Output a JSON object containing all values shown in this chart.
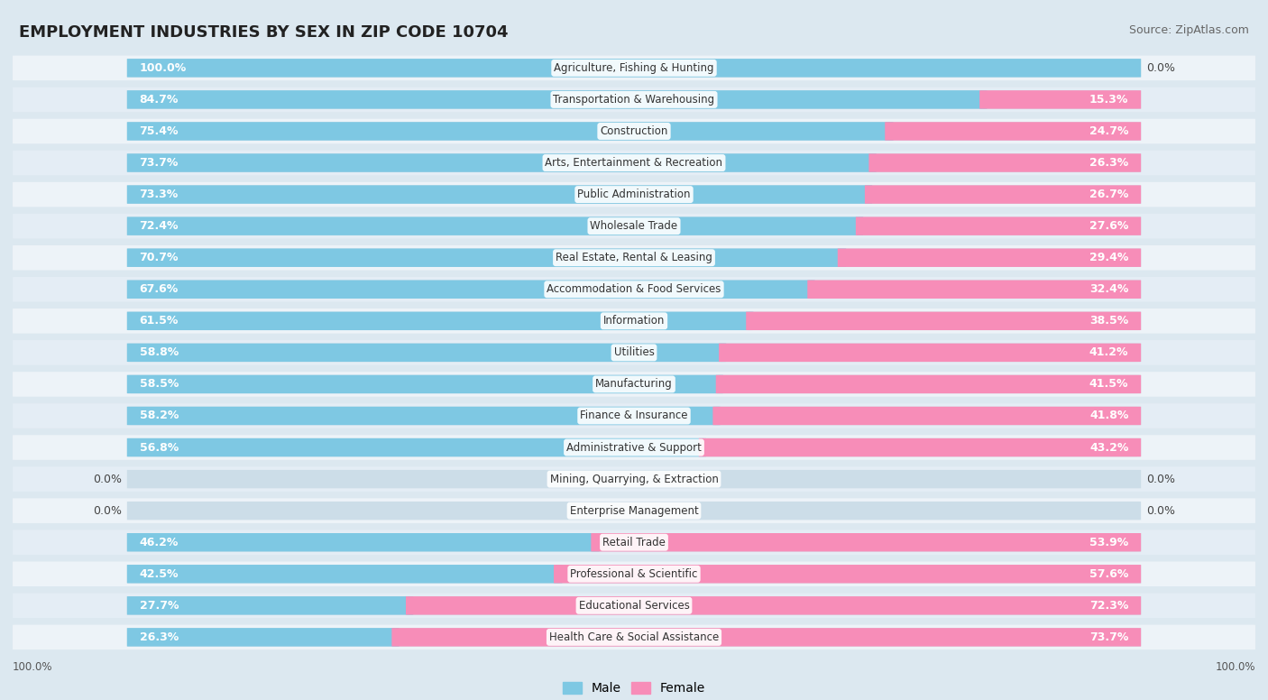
{
  "title": "EMPLOYMENT INDUSTRIES BY SEX IN ZIP CODE 10704",
  "source": "Source: ZipAtlas.com",
  "industries": [
    {
      "name": "Agriculture, Fishing & Hunting",
      "male": 100.0,
      "female": 0.0
    },
    {
      "name": "Transportation & Warehousing",
      "male": 84.7,
      "female": 15.3
    },
    {
      "name": "Construction",
      "male": 75.4,
      "female": 24.7
    },
    {
      "name": "Arts, Entertainment & Recreation",
      "male": 73.7,
      "female": 26.3
    },
    {
      "name": "Public Administration",
      "male": 73.3,
      "female": 26.7
    },
    {
      "name": "Wholesale Trade",
      "male": 72.4,
      "female": 27.6
    },
    {
      "name": "Real Estate, Rental & Leasing",
      "male": 70.7,
      "female": 29.4
    },
    {
      "name": "Accommodation & Food Services",
      "male": 67.6,
      "female": 32.4
    },
    {
      "name": "Information",
      "male": 61.5,
      "female": 38.5
    },
    {
      "name": "Utilities",
      "male": 58.8,
      "female": 41.2
    },
    {
      "name": "Manufacturing",
      "male": 58.5,
      "female": 41.5
    },
    {
      "name": "Finance & Insurance",
      "male": 58.2,
      "female": 41.8
    },
    {
      "name": "Administrative & Support",
      "male": 56.8,
      "female": 43.2
    },
    {
      "name": "Mining, Quarrying, & Extraction",
      "male": 0.0,
      "female": 0.0
    },
    {
      "name": "Enterprise Management",
      "male": 0.0,
      "female": 0.0
    },
    {
      "name": "Retail Trade",
      "male": 46.2,
      "female": 53.9
    },
    {
      "name": "Professional & Scientific",
      "male": 42.5,
      "female": 57.6
    },
    {
      "name": "Educational Services",
      "male": 27.7,
      "female": 72.3
    },
    {
      "name": "Health Care & Social Assistance",
      "male": 26.3,
      "female": 73.7
    }
  ],
  "male_color": "#7ec8e3",
  "female_color": "#f78db8",
  "bar_bg_color": "#dce8f0",
  "row_bg_even": "#edf3f8",
  "row_bg_odd": "#e4edf5",
  "bg_color": "#dce8f0",
  "title_fontsize": 13,
  "source_fontsize": 9,
  "bar_label_fontsize": 9,
  "industry_fontsize": 8.5,
  "legend_fontsize": 10
}
